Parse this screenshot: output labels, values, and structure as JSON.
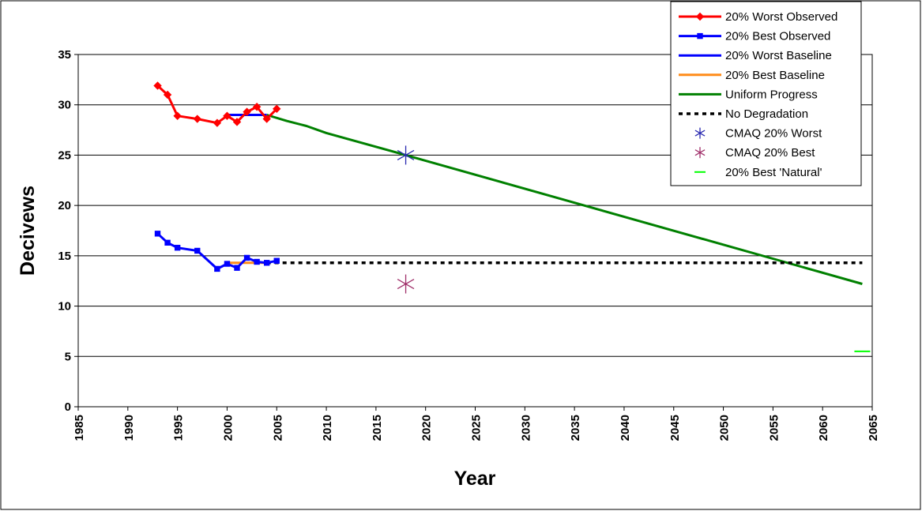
{
  "chart_data": {
    "type": "line",
    "title": "",
    "xlabel": "Year",
    "ylabel": "Decivews",
    "xlim": [
      1985,
      2065
    ],
    "ylim": [
      0,
      35
    ],
    "xticks": [
      1985,
      1990,
      1995,
      2000,
      2005,
      2010,
      2015,
      2020,
      2025,
      2030,
      2035,
      2040,
      2045,
      2050,
      2055,
      2060,
      2065
    ],
    "yticks": [
      0,
      5,
      10,
      15,
      20,
      25,
      30,
      35
    ],
    "grid": "horizontal",
    "legend_position": "top-right",
    "series": [
      {
        "name": "20% Worst Observed",
        "kind": "line-marker",
        "marker": "diamond",
        "color": "#ff0000",
        "points": [
          [
            1993,
            31.9
          ],
          [
            1994,
            31.0
          ],
          [
            1995,
            28.9
          ],
          [
            1997,
            28.6
          ],
          [
            1999,
            28.2
          ],
          [
            2000,
            28.9
          ],
          [
            2001,
            28.3
          ],
          [
            2002,
            29.3
          ],
          [
            2003,
            29.8
          ],
          [
            2004,
            28.6
          ],
          [
            2005,
            29.6
          ]
        ]
      },
      {
        "name": "20% Best Observed",
        "kind": "line-marker",
        "marker": "square",
        "color": "#0000ff",
        "points": [
          [
            1993,
            17.2
          ],
          [
            1994,
            16.3
          ],
          [
            1995,
            15.8
          ],
          [
            1997,
            15.5
          ],
          [
            1999,
            13.7
          ],
          [
            2000,
            14.2
          ],
          [
            2001,
            13.8
          ],
          [
            2002,
            14.8
          ],
          [
            2003,
            14.4
          ],
          [
            2004,
            14.3
          ],
          [
            2005,
            14.5
          ]
        ]
      },
      {
        "name": "20% Worst Baseline",
        "kind": "line",
        "color": "#0000ff",
        "points": [
          [
            2000,
            29.0
          ],
          [
            2004,
            29.0
          ]
        ]
      },
      {
        "name": "20% Best Baseline",
        "kind": "line",
        "color": "#ff8c1a",
        "points": [
          [
            2000,
            14.3
          ],
          [
            2004,
            14.3
          ]
        ]
      },
      {
        "name": "Uniform Progress",
        "kind": "line",
        "color": "#008000",
        "points": [
          [
            2004,
            29.0
          ],
          [
            2006,
            28.4
          ],
          [
            2008,
            27.9
          ],
          [
            2010,
            27.2
          ],
          [
            2018,
            25.0
          ],
          [
            2064,
            12.2
          ]
        ]
      },
      {
        "name": "No Degradation",
        "kind": "dashed",
        "color": "#000000",
        "points": [
          [
            2004,
            14.3
          ],
          [
            2064,
            14.3
          ]
        ]
      },
      {
        "name": "CMAQ 20% Worst",
        "kind": "asterisk",
        "color": "#2a2ab0",
        "points": [
          [
            2018,
            25.0
          ]
        ]
      },
      {
        "name": "CMAQ 20% Best",
        "kind": "asterisk",
        "color": "#a0306a",
        "points": [
          [
            2018,
            12.2
          ]
        ]
      },
      {
        "name": "20% Best 'Natural'",
        "kind": "dash-marker",
        "color": "#00ff00",
        "points": [
          [
            2064,
            5.5
          ]
        ]
      }
    ]
  }
}
